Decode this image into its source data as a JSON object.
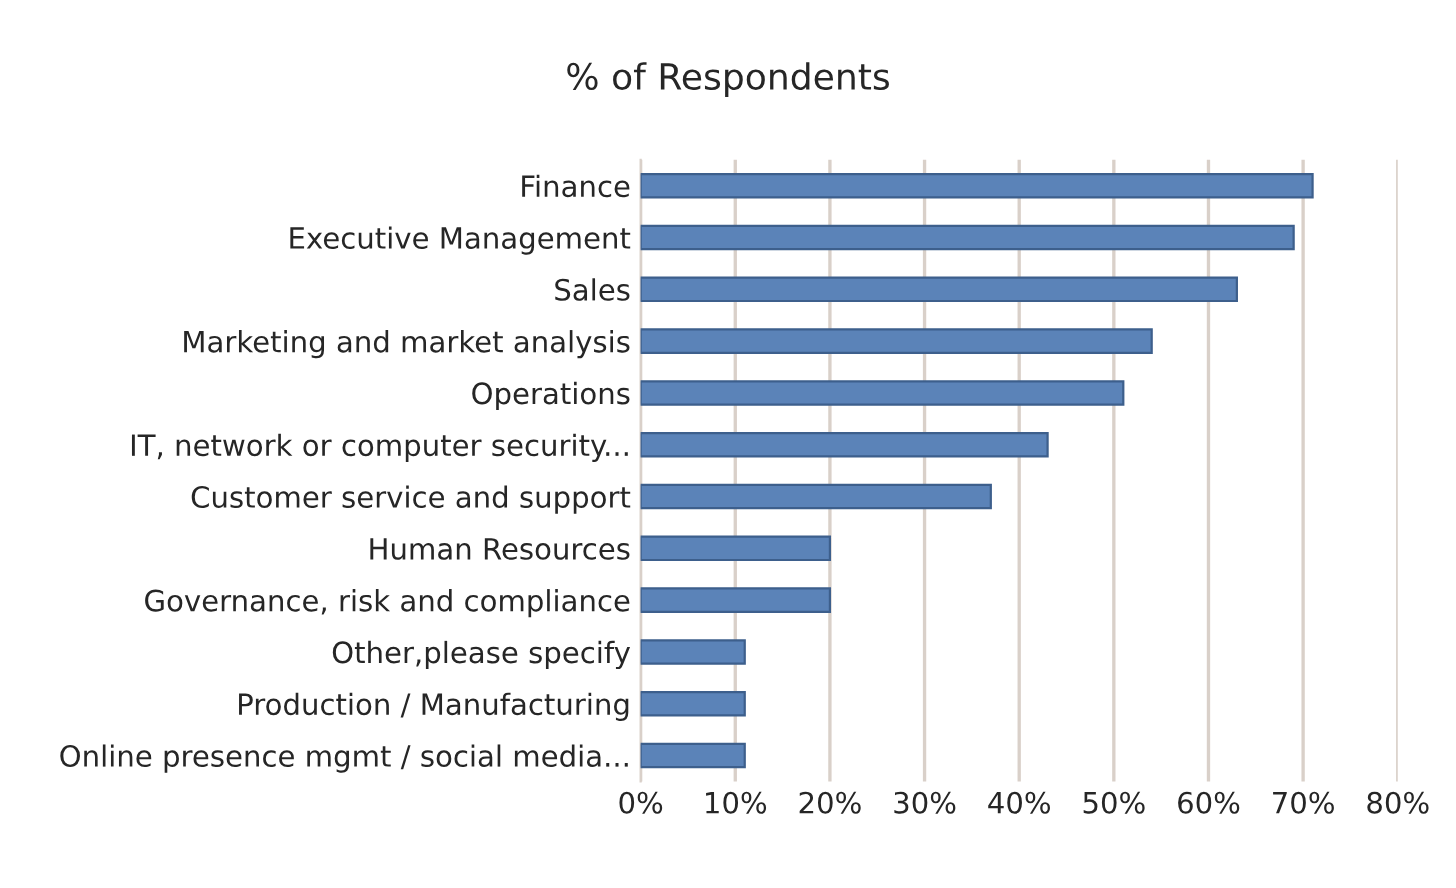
{
  "chart_data": {
    "type": "bar",
    "orientation": "horizontal",
    "title": "% of Respondents",
    "categories": [
      "Finance",
      "Executive Management",
      "Sales",
      "Marketing and market analysis",
      "Operations",
      "IT, network or computer security...",
      "Customer service and support",
      "Human Resources",
      "Governance, risk and compliance",
      "Other,please specify",
      "Production / Manufacturing",
      "Online presence mgmt / social media..."
    ],
    "values": [
      71,
      69,
      63,
      54,
      51,
      43,
      37,
      20,
      20,
      11,
      11,
      11
    ],
    "color": "#5b83b8",
    "xlim": [
      0,
      80
    ],
    "xticks": [
      {
        "value": 0,
        "label": "0%"
      },
      {
        "value": 10,
        "label": "10%"
      },
      {
        "value": 20,
        "label": "20%"
      },
      {
        "value": 30,
        "label": "30%"
      },
      {
        "value": 40,
        "label": "40%"
      },
      {
        "value": 50,
        "label": "50%"
      },
      {
        "value": 60,
        "label": "60%"
      },
      {
        "value": 70,
        "label": "70%"
      },
      {
        "value": 80,
        "label": "80%"
      }
    ],
    "grid": "x",
    "legend": false
  }
}
